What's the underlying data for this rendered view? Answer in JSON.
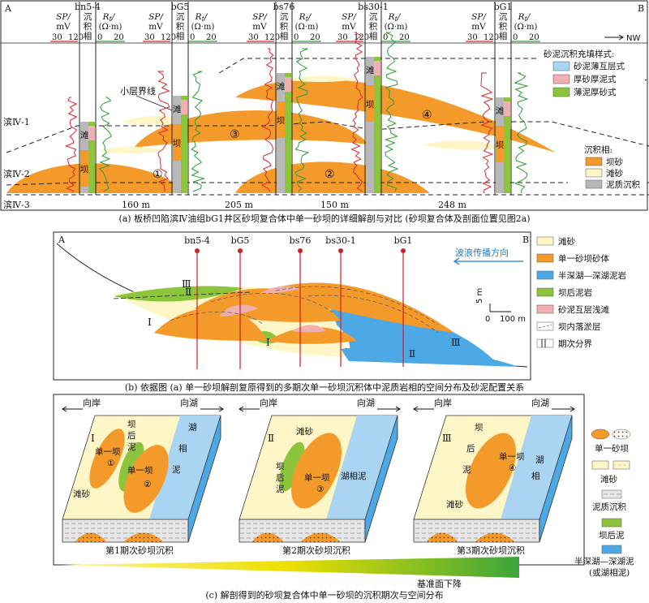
{
  "panel_a": {
    "corner_left": "A",
    "corner_right": "B",
    "nw_label": "NW",
    "wells": [
      "bn5-4",
      "bG5",
      "bs76",
      "bs30-1",
      "bG1"
    ],
    "col_sp": "SP/",
    "col_sp_unit": "mV",
    "col_sp_scale": [
      "30",
      "120"
    ],
    "col_facies": [
      "沉",
      "积",
      "相"
    ],
    "col_rt": "R",
    "col_rt_sub": "t",
    "col_rt_unit": "(Ω·m)",
    "col_rt_scale": [
      "0",
      "20"
    ],
    "layers": [
      "滨Ⅳ-1",
      "滨Ⅳ-2",
      "滨Ⅳ-3"
    ],
    "small_layer_label": "小层界线",
    "bar_numbers": [
      "①",
      "②",
      "③",
      "④"
    ],
    "well_facies": {
      "tan": "滩",
      "ba": "坝"
    },
    "distances": [
      "160 m",
      "205 m",
      "150 m",
      "248 m"
    ],
    "fill_legend_title": "砂泥沉积充填样式:",
    "fill_legend": [
      "砂泥薄互层式",
      "厚砂厚泥式",
      "薄泥厚砂式"
    ],
    "facies_legend_title": "沉积相:",
    "facies_legend": [
      "坝砂",
      "滩砂",
      "泥质沉积"
    ],
    "caption": "(a) 板桥凹陷滨Ⅳ油组bG1井区砂坝复合体中单一砂坝的详细解剖与对比 (砂坝复合体及剖面位置见图2a)"
  },
  "panel_b": {
    "corner_left": "A",
    "corner_right": "B",
    "wells": [
      "bn5-4",
      "bG5",
      "bs76",
      "bs30-1",
      "bG1"
    ],
    "wave_label": "波浪传播方向",
    "stage_labels": [
      "Ⅰ",
      "Ⅱ",
      "Ⅲ"
    ],
    "scale_v": "5 m",
    "scale_h0": "0",
    "scale_h1": "100 m",
    "legend": [
      "滩砂",
      "单一砂坝砂体",
      "半深湖—深湖泥岩",
      "坝后泥岩",
      "砂泥互层浅滩",
      "坝内落淤层",
      "期次分界"
    ],
    "caption": "(b) 依据图 (a) 单一砂坝解剖复原得到的多期次单一砂坝沉积体中泥质岩相的空间分布及砂泥配置关系"
  },
  "panel_c": {
    "to_shore": "向岸",
    "to_lake": "向湖",
    "blocks": [
      {
        "stage": "Ⅰ",
        "title": "第1期次砂坝沉积",
        "labels": [
          "坝",
          "后",
          "泥",
          "单一坝",
          "①",
          "单一坝",
          "②",
          "湖",
          "相",
          "泥",
          "滩砂"
        ]
      },
      {
        "stage": "Ⅱ",
        "title": "第2期次砂坝沉积",
        "labels": [
          "滩砂",
          "坝",
          "后",
          "泥",
          "单一坝",
          "③",
          "湖相泥"
        ]
      },
      {
        "stage": "Ⅲ",
        "title": "第3期次砂坝沉积",
        "labels": [
          "坝",
          "后",
          "泥",
          "单一坝",
          "④",
          "湖",
          "相",
          "滩砂"
        ]
      }
    ],
    "base_level": "基准面下降",
    "legend": [
      "单一砂坝",
      "滩砂",
      "泥质沉积",
      "坝后泥",
      "半深湖—深湖泥",
      "(或湖相泥)"
    ],
    "caption": "(c) 解剖得到的砂坝复合体中单一砂坝的沉积期次与空间分布"
  },
  "colors": {
    "orange": "#F39A2A",
    "cream": "#FFF6C8",
    "gray": "#B8B8B8",
    "green": "#8CC43C",
    "blue": "#A9D4F2",
    "deep_blue": "#4DA8E6",
    "pink": "#F2AFAF",
    "red_curve": "#E0262B",
    "green_curve": "#2E9B3A"
  }
}
